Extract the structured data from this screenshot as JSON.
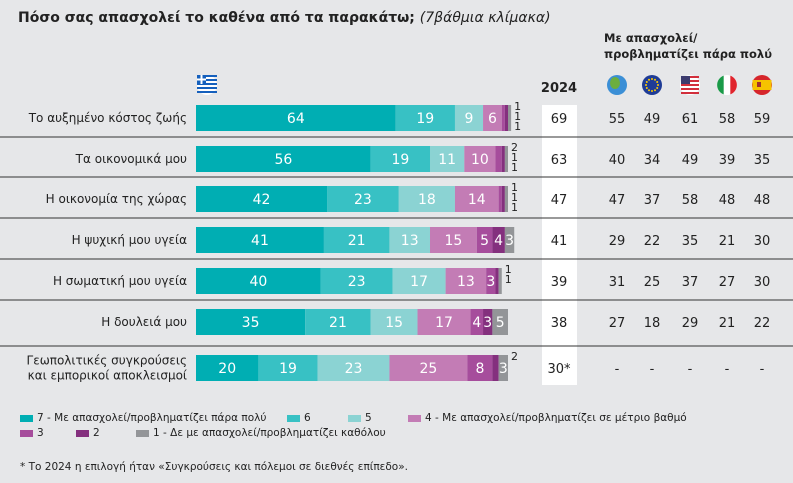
{
  "chart_data": {
    "type": "bar",
    "orientation": "horizontal-stacked",
    "title": "Πόσο σας απασχολεί το καθένα από τα παρακάτω;",
    "subtitle": "(7βάθμια κλίμακα)",
    "categories": [
      "Το αυξημένο κόστος ζωής",
      "Τα οικονομικά μου",
      "Η οικονομία της χώρας",
      "Η ψυχική μου υγεία",
      "Η σωματική μου υγεία",
      "Η δουλειά μου",
      "Γεωπολιτικές συγκρούσεις και εμπορικοί αποκλεισμοί"
    ],
    "category_lines": [
      [
        "Το αυξημένο κόστος ζωής"
      ],
      [
        "Τα οικονομικά μου"
      ],
      [
        "Η οικονομία της χώρας"
      ],
      [
        "Η ψυχική μου υγεία"
      ],
      [
        "Η σωματική μου υγεία"
      ],
      [
        "Η δουλειά μου"
      ],
      [
        "Γεωπολιτικές συγκρούσεις",
        "και εμπορικοί αποκλεισμοί"
      ]
    ],
    "series": [
      {
        "name": "7 - Με απασχολεί/προβληματίζει πάρα πολύ",
        "color": "#00aeb3",
        "values": [
          64,
          56,
          42,
          41,
          40,
          35,
          20
        ]
      },
      {
        "name": "6",
        "color": "#38c1c4",
        "values": [
          19,
          19,
          23,
          21,
          23,
          21,
          19
        ]
      },
      {
        "name": "5",
        "color": "#8bd3d3",
        "values": [
          9,
          11,
          18,
          13,
          17,
          15,
          23
        ]
      },
      {
        "name": "4 - Με απασχολεί/προβληματίζει σε μέτριο βαθμό",
        "color": "#c37cb5",
        "values": [
          6,
          10,
          14,
          15,
          13,
          17,
          25
        ]
      },
      {
        "name": "3",
        "color": "#a64d9c",
        "values": [
          1,
          2,
          1,
          5,
          3,
          4,
          8
        ]
      },
      {
        "name": "2",
        "color": "#84307e",
        "values": [
          1,
          1,
          1,
          4,
          1,
          3,
          2
        ]
      },
      {
        "name": "1 - Δε με απασχολεί/προβληματίζει καθόλου",
        "color": "#939598",
        "values": [
          1,
          1,
          1,
          3,
          1,
          5,
          3
        ]
      }
    ],
    "column_2024": {
      "header": "2024",
      "values": [
        "69",
        "63",
        "47",
        "41",
        "39",
        "38",
        "30*"
      ]
    },
    "comparison": {
      "header": [
        "Με απασχολεί/",
        "προβληματίζει πάρα πολύ"
      ],
      "regions": [
        {
          "icon": "globe-icon",
          "values": [
            "55",
            "40",
            "47",
            "29",
            "31",
            "27",
            "-"
          ]
        },
        {
          "icon": "eu-flag-icon",
          "values": [
            "49",
            "34",
            "37",
            "22",
            "25",
            "18",
            "-"
          ]
        },
        {
          "icon": "us-flag-icon",
          "values": [
            "61",
            "49",
            "58",
            "35",
            "37",
            "29",
            "-"
          ]
        },
        {
          "icon": "italy-flag-icon",
          "values": [
            "58",
            "39",
            "48",
            "21",
            "27",
            "21",
            "-"
          ]
        },
        {
          "icon": "spain-flag-icon",
          "values": [
            "59",
            "35",
            "48",
            "30",
            "30",
            "22",
            "-"
          ]
        }
      ]
    },
    "greece_icon": "greece-flag-icon",
    "legend_placement": "bottom",
    "footnote": "* Το 2024 η επιλογή ήταν «Συγκρούσεις και πόλεμοι σε διεθνές επίπεδο»."
  }
}
